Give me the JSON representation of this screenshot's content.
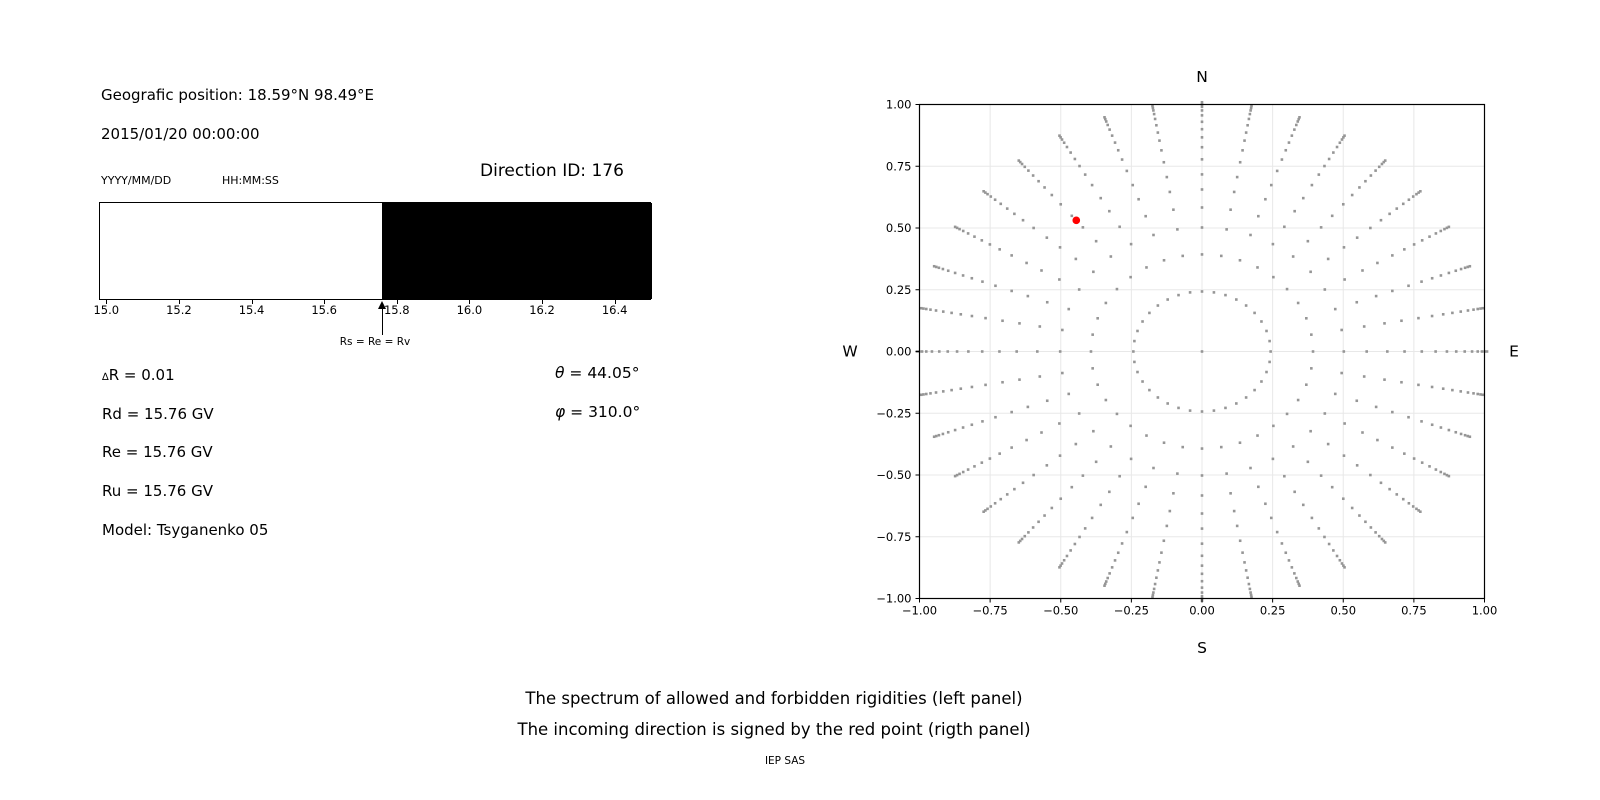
{
  "left_panel": {
    "geo_position": "Geografic position: 18.59°N 98.49°E",
    "datetime": "2015/01/20 00:00:00",
    "date_format_label": "YYYY/MM/DD",
    "time_format_label": "HH:MM:SS",
    "direction_id": "Direction ID: 176",
    "arrow_label": "Rs = Re = Rv",
    "values_left": [
      {
        "small": "∆",
        "text": "R = 0.01"
      },
      {
        "small": "",
        "text": "Rd = 15.76 GV"
      },
      {
        "small": "",
        "text": "Re = 15.76 GV"
      },
      {
        "small": "",
        "text": "Ru = 15.76 GV"
      },
      {
        "small": "",
        "text": "Model: Tsyganenko 05"
      }
    ],
    "values_right": [
      {
        "greek": "θ",
        "text": " = 44.05°"
      },
      {
        "greek": "φ",
        "text": " = 310.0°"
      }
    ]
  },
  "captions": {
    "line1": "The spectrum of allowed and forbidden rigidities (left panel)",
    "line2": "The incoming direction is signed by the red point (rigth panel)",
    "credit": "IEP SAS"
  },
  "chart_data": [
    {
      "type": "bar",
      "title": "Rigidity spectrum of allowed and forbidden trajectories",
      "xlim": [
        14.98,
        16.5
      ],
      "allowed_range": [
        14.98,
        15.76
      ],
      "forbidden_range": [
        15.76,
        16.5
      ],
      "boundary_rigidity_gv": 15.76,
      "xticks": [
        15.0,
        15.2,
        15.4,
        15.6,
        15.8,
        16.0,
        16.2,
        16.4
      ],
      "xtick_labels": [
        "15.0",
        "15.2",
        "15.4",
        "15.6",
        "15.8",
        "16.0",
        "16.2",
        "16.4"
      ],
      "annotation": "Rs = Re = Rv",
      "colors": {
        "allowed": "#ffffff",
        "forbidden": "#000000"
      }
    },
    {
      "type": "scatter",
      "compass": {
        "north": "N",
        "south": "S",
        "east": "E",
        "west": "W"
      },
      "xlim": [
        -1,
        1
      ],
      "ylim": [
        -1,
        1
      ],
      "tick_values": [
        -1,
        -0.75,
        -0.5,
        -0.25,
        0,
        0.25,
        0.5,
        0.75,
        1
      ],
      "tick_labels": [
        "−1.00",
        "−0.75",
        "−0.50",
        "−0.25",
        "0.00",
        "0.25",
        "0.50",
        "0.75",
        "1.00"
      ],
      "grid": true,
      "azimuth_start_deg": 0,
      "azimuth_step_deg": 10,
      "azimuth_count": 36,
      "spoke_radii": [
        0.243,
        0.393,
        0.502,
        0.583,
        0.656,
        0.717,
        0.778,
        0.827,
        0.867,
        0.9,
        0.93,
        0.956,
        0.976,
        0.991,
        1.001,
        1.009
      ],
      "has_center_point": true,
      "red_point": {
        "x": -0.445,
        "y": 0.531,
        "theta_deg": 44.05,
        "phi_deg": 310.0
      },
      "dot_color": "#969696",
      "red_color": "#ff0000",
      "grid_color": "#e8e8e8"
    }
  ]
}
